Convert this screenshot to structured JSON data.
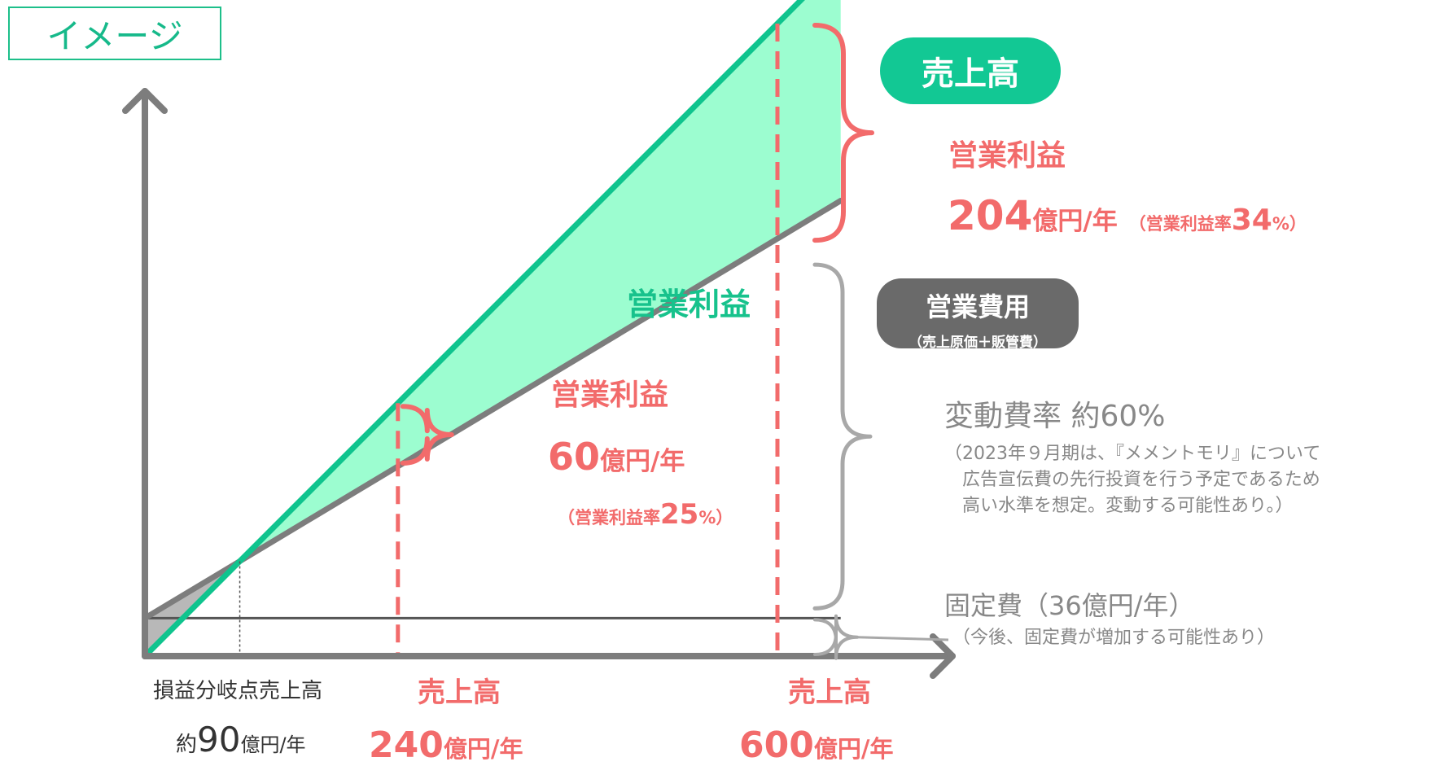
{
  "tag_label": "イメージ",
  "lines": {
    "sales_label": "売上高",
    "cost_label": "営業費用",
    "cost_sub": "（売上原価＋販管費）"
  },
  "center_label": "営業利益",
  "profit_600": {
    "title": "営業利益",
    "amount": "204",
    "unit": "億円/年",
    "margin_prefix": "（営業利益率",
    "margin_value": "34",
    "margin_suffix": "%）"
  },
  "profit_240": {
    "title": "営業利益",
    "amount": "60",
    "unit": "億円/年",
    "margin_prefix": "（営業利益率",
    "margin_value": "25",
    "margin_suffix": "%）"
  },
  "variable_cost": {
    "title": "変動費率 約60%",
    "note_lines": [
      "（2023年９月期は、『メメントモリ』について",
      "広告宣伝費の先行投資を行う予定であるため",
      "高い水準を想定。変動する可能性あり。）"
    ]
  },
  "fixed_cost": {
    "title": "固定費（36億円/年）",
    "note": "（今後、固定費が増加する可能性あり）"
  },
  "breakeven": {
    "label": "損益分岐点売上高",
    "prefix": "約",
    "value": "90",
    "unit": "億円/年"
  },
  "sales_240": {
    "label": "売上高",
    "value": "240",
    "unit": "億円/年"
  },
  "sales_600": {
    "label": "売上高",
    "value": "600",
    "unit": "億円/年"
  },
  "colors": {
    "sales_line": "#0fc48e",
    "cost_line": "#7d7d7d",
    "profit_fill": "#9cfdd0",
    "loss_fill": "#b8b8b8",
    "highlight": "#f26b6b",
    "axis": "#7d7d7d"
  },
  "chart_data": {
    "type": "line",
    "x_unit": "億円/年",
    "y_unit": "億円/年",
    "xlim": [
      0,
      660
    ],
    "series": [
      {
        "name": "売上高",
        "x": [
          0,
          660
        ],
        "y": [
          0,
          660
        ]
      },
      {
        "name": "営業費用",
        "x": [
          0,
          660
        ],
        "y": [
          36,
          432
        ]
      }
    ],
    "fixed_cost": 36,
    "variable_cost_ratio": 0.6,
    "break_even_x": 90,
    "markers": [
      {
        "x": 240,
        "sales": 240,
        "cost": 180,
        "operating_profit": 60,
        "margin_percent": 25
      },
      {
        "x": 600,
        "sales": 600,
        "cost": 396,
        "operating_profit": 204,
        "margin_percent": 34
      }
    ]
  }
}
